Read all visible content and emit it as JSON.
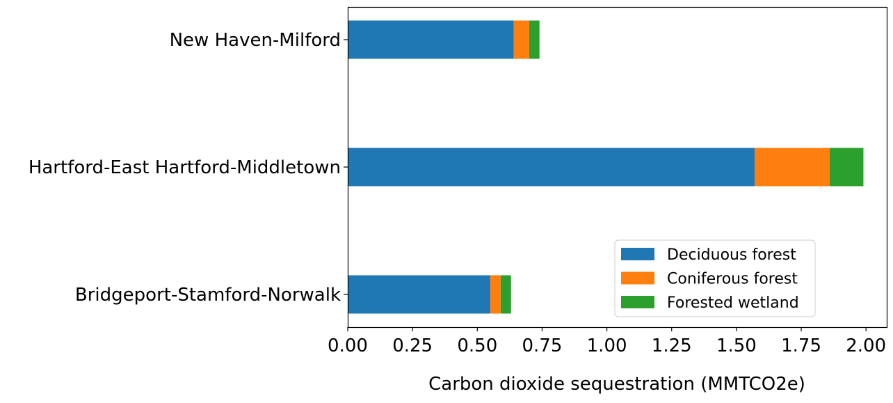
{
  "chart_data": {
    "type": "bar",
    "orientation": "horizontal",
    "stacked": true,
    "categories": [
      "Bridgeport-Stamford-Norwalk",
      "Hartford-East Hartford-Middletown",
      "New Haven-Milford"
    ],
    "series": [
      {
        "name": "Deciduous forest",
        "values": [
          0.55,
          1.57,
          0.64
        ],
        "color": "#1f77b4"
      },
      {
        "name": "Coniferous forest",
        "values": [
          0.04,
          0.29,
          0.06
        ],
        "color": "#ff7f0e"
      },
      {
        "name": "Forested wetland",
        "values": [
          0.04,
          0.13,
          0.04
        ],
        "color": "#2ca02c"
      }
    ],
    "title": "",
    "xlabel": "Carbon dioxide sequestration (MMTCO2e)",
    "ylabel": "",
    "xlim": [
      0,
      2.08
    ],
    "xticks": [
      "0.00",
      "0.25",
      "0.50",
      "0.75",
      "1.00",
      "1.25",
      "1.50",
      "1.75",
      "2.00"
    ],
    "grid": false,
    "legend_position": "lower-right"
  }
}
